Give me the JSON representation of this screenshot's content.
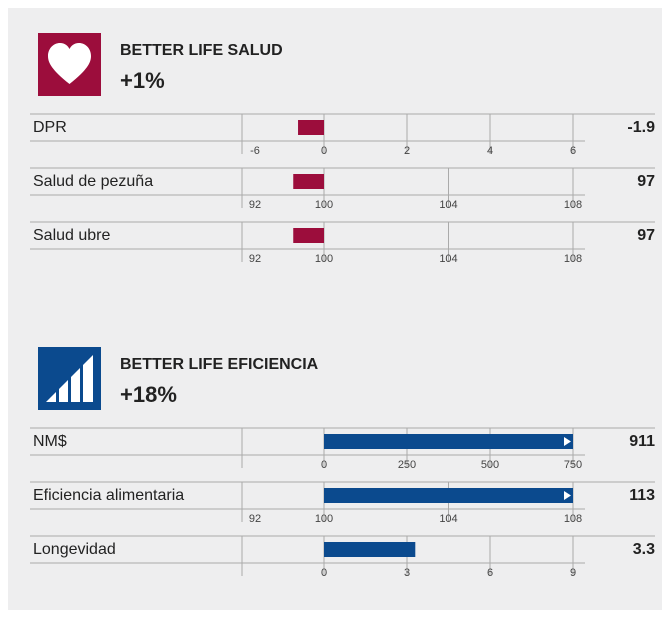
{
  "chart_data": [
    {
      "type": "bar",
      "title": "BETTER LIFE SALUD",
      "annotation": "+1%",
      "color": "#9c0d3c",
      "rows": [
        {
          "label": "DPR",
          "value": -1.9,
          "xticks": [
            -6,
            0,
            2,
            4,
            6
          ]
        },
        {
          "label": "Salud de pezuña",
          "value": 97,
          "xticks": [
            92,
            100,
            104,
            108
          ]
        },
        {
          "label": "Salud ubre",
          "value": 97,
          "xticks": [
            92,
            100,
            104,
            108
          ]
        }
      ]
    },
    {
      "type": "bar",
      "title": "BETTER LIFE EFICIENCIA",
      "annotation": "+18%",
      "color": "#0b4a8e",
      "rows": [
        {
          "label": "NM$",
          "value": 911,
          "xticks": [
            0,
            250,
            500,
            750
          ]
        },
        {
          "label": "Eficiencia alimentaria",
          "value": 113,
          "xticks": [
            92,
            100,
            104,
            108
          ]
        },
        {
          "label": "Longevidad",
          "value": 3.3,
          "xticks": [
            0,
            3,
            6,
            9
          ]
        }
      ]
    }
  ]
}
